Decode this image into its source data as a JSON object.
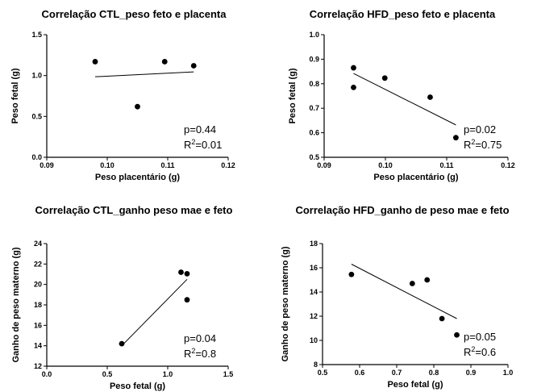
{
  "chart_data": [
    {
      "type": "scatter",
      "title": "Correlação CTL_peso feto e placenta",
      "xlabel": "Peso placentário (g)",
      "ylabel": "Peso fetal (g)",
      "xlim": [
        0.09,
        0.12
      ],
      "ylim": [
        0.0,
        1.5
      ],
      "xticks": [
        "0.09",
        "0.10",
        "0.11",
        "0.12"
      ],
      "yticks": [
        "0.0",
        "0.5",
        "1.0",
        "1.5"
      ],
      "points": [
        [
          0.098,
          1.17
        ],
        [
          0.105,
          0.62
        ],
        [
          0.1095,
          1.17
        ],
        [
          0.1143,
          1.12
        ]
      ],
      "fit_line": [
        [
          0.098,
          0.985
        ],
        [
          0.1143,
          1.045
        ]
      ],
      "p_text": "p=0.44",
      "r2_text": "=0.01"
    },
    {
      "type": "scatter",
      "title": "Correlação HFD_peso feto e placenta",
      "xlabel": "Peso placentário (g)",
      "ylabel": "Peso fetal (g)",
      "xlim": [
        0.09,
        0.12
      ],
      "ylim": [
        0.5,
        1.0
      ],
      "xticks": [
        "0.09",
        "0.10",
        "0.11",
        "0.12"
      ],
      "yticks": [
        "0.5",
        "0.6",
        "0.7",
        "0.8",
        "0.9",
        "1.0"
      ],
      "points": [
        [
          0.0948,
          0.865
        ],
        [
          0.0948,
          0.785
        ],
        [
          0.0999,
          0.823
        ],
        [
          0.1073,
          0.745
        ],
        [
          0.1115,
          0.58
        ]
      ],
      "fit_line": [
        [
          0.0948,
          0.842
        ],
        [
          0.1115,
          0.632
        ]
      ],
      "p_text": "p=0.02",
      "r2_text": "=0.75"
    },
    {
      "type": "scatter",
      "title": "Correlação CTL_ganho peso mae e feto",
      "xlabel": "Peso fetal (g)",
      "ylabel": "Ganho de peso materno (g)",
      "xlim": [
        0.0,
        1.5
      ],
      "ylim": [
        12,
        24
      ],
      "xticks": [
        "0.0",
        "0.5",
        "1.0",
        "1.5"
      ],
      "yticks": [
        "12",
        "14",
        "16",
        "18",
        "20",
        "22",
        "24"
      ],
      "points": [
        [
          0.62,
          14.2
        ],
        [
          1.11,
          21.2
        ],
        [
          1.16,
          21.05
        ],
        [
          1.16,
          18.5
        ]
      ],
      "fit_line": [
        [
          0.62,
          14.0
        ],
        [
          1.16,
          20.5
        ]
      ],
      "p_text": "p=0.04",
      "r2_text": "=0.8"
    },
    {
      "type": "scatter",
      "title": "Correlação HFD_ganho de peso mae e feto",
      "xlabel": "Peso fetal (g)",
      "ylabel": "Ganho de peso materno (g)",
      "xlim": [
        0.5,
        1.0
      ],
      "ylim": [
        8,
        18
      ],
      "xticks": [
        "0.5",
        "0.6",
        "0.7",
        "0.8",
        "0.9",
        "1.0"
      ],
      "yticks": [
        "8",
        "10",
        "12",
        "14",
        "16",
        "18"
      ],
      "points": [
        [
          0.578,
          15.45
        ],
        [
          0.742,
          14.7
        ],
        [
          0.782,
          15.0
        ],
        [
          0.822,
          11.8
        ],
        [
          0.862,
          10.45
        ]
      ],
      "fit_line": [
        [
          0.578,
          16.3
        ],
        [
          0.862,
          11.8
        ]
      ],
      "p_text": "p=0.05",
      "r2_text": "=0.6"
    }
  ],
  "r2_label": "R",
  "r2_exponent": "2"
}
